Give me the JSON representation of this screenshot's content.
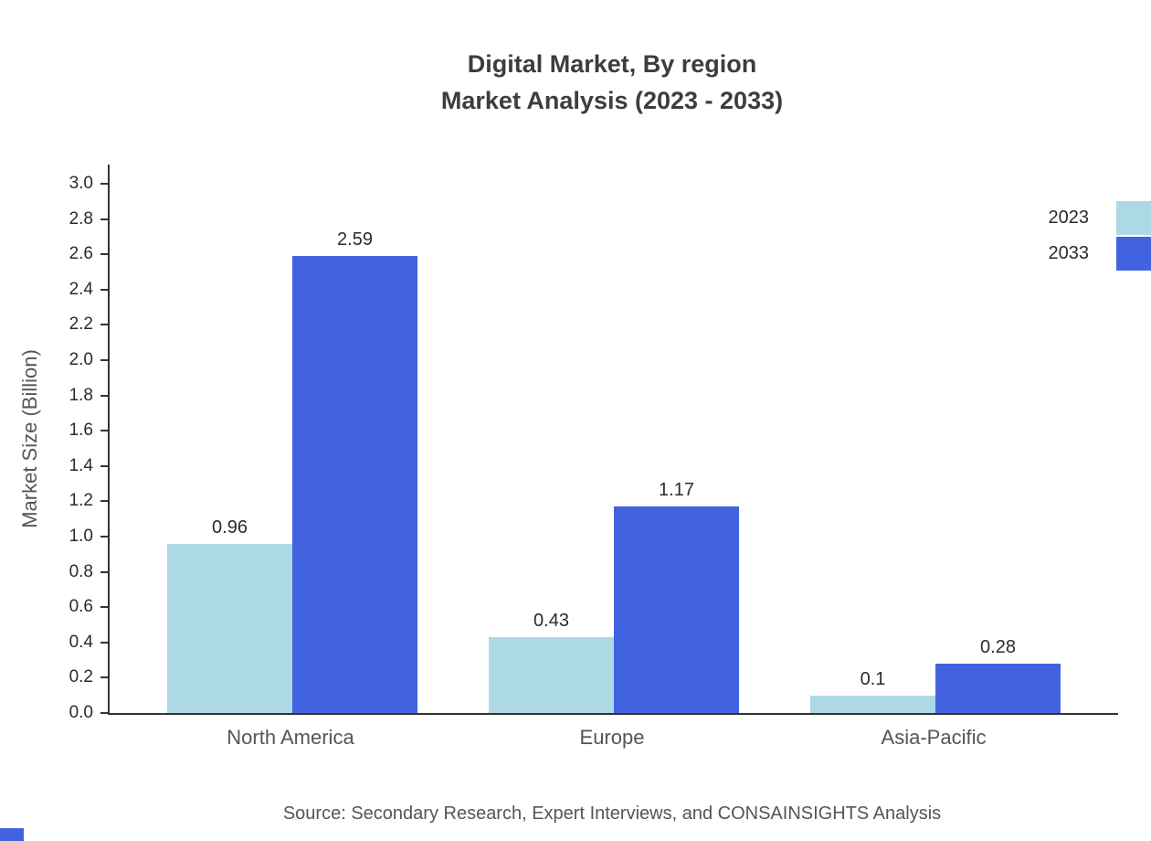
{
  "title": {
    "line1": "Digital Market, By region",
    "line2": "Market Analysis (2023 - 2033)"
  },
  "source": "Source: Secondary Research, Expert Interviews, and CONSAINSIGHTS Analysis",
  "legend": [
    {
      "label": "2023",
      "color": "#add8e6"
    },
    {
      "label": "2033",
      "color": "#4263e0"
    }
  ],
  "colors": {
    "axis": "#333333",
    "tick_text": "#2b2b2b",
    "label_text": "#555555",
    "title_text": "#3d3d3d",
    "accent": "#4263e0"
  },
  "chart_data": {
    "type": "bar",
    "title": "Digital Market, By region Market Analysis (2023 - 2033)",
    "categories": [
      "North America",
      "Europe",
      "Asia-Pacific"
    ],
    "series": [
      {
        "name": "2023",
        "color": "#add8e6",
        "values": [
          0.96,
          0.43,
          0.1
        ]
      },
      {
        "name": "2033",
        "color": "#4263e0",
        "values": [
          2.59,
          1.17,
          0.28
        ]
      }
    ],
    "xlabel": "",
    "ylabel": "Market Size (Billion)",
    "ylim": [
      0.0,
      3.0
    ],
    "ytick_step": 0.2,
    "ytick_labels": [
      "0.0",
      "0.2",
      "0.4",
      "0.6",
      "0.8",
      "1.0",
      "1.2",
      "1.4",
      "1.6",
      "1.8",
      "2.0",
      "2.2",
      "2.4",
      "2.6",
      "2.8",
      "3.0"
    ],
    "grid": false,
    "legend_position": "top-right",
    "value_labels": [
      "0.96",
      "2.59",
      "0.43",
      "1.17",
      "0.1",
      "0.28"
    ]
  }
}
